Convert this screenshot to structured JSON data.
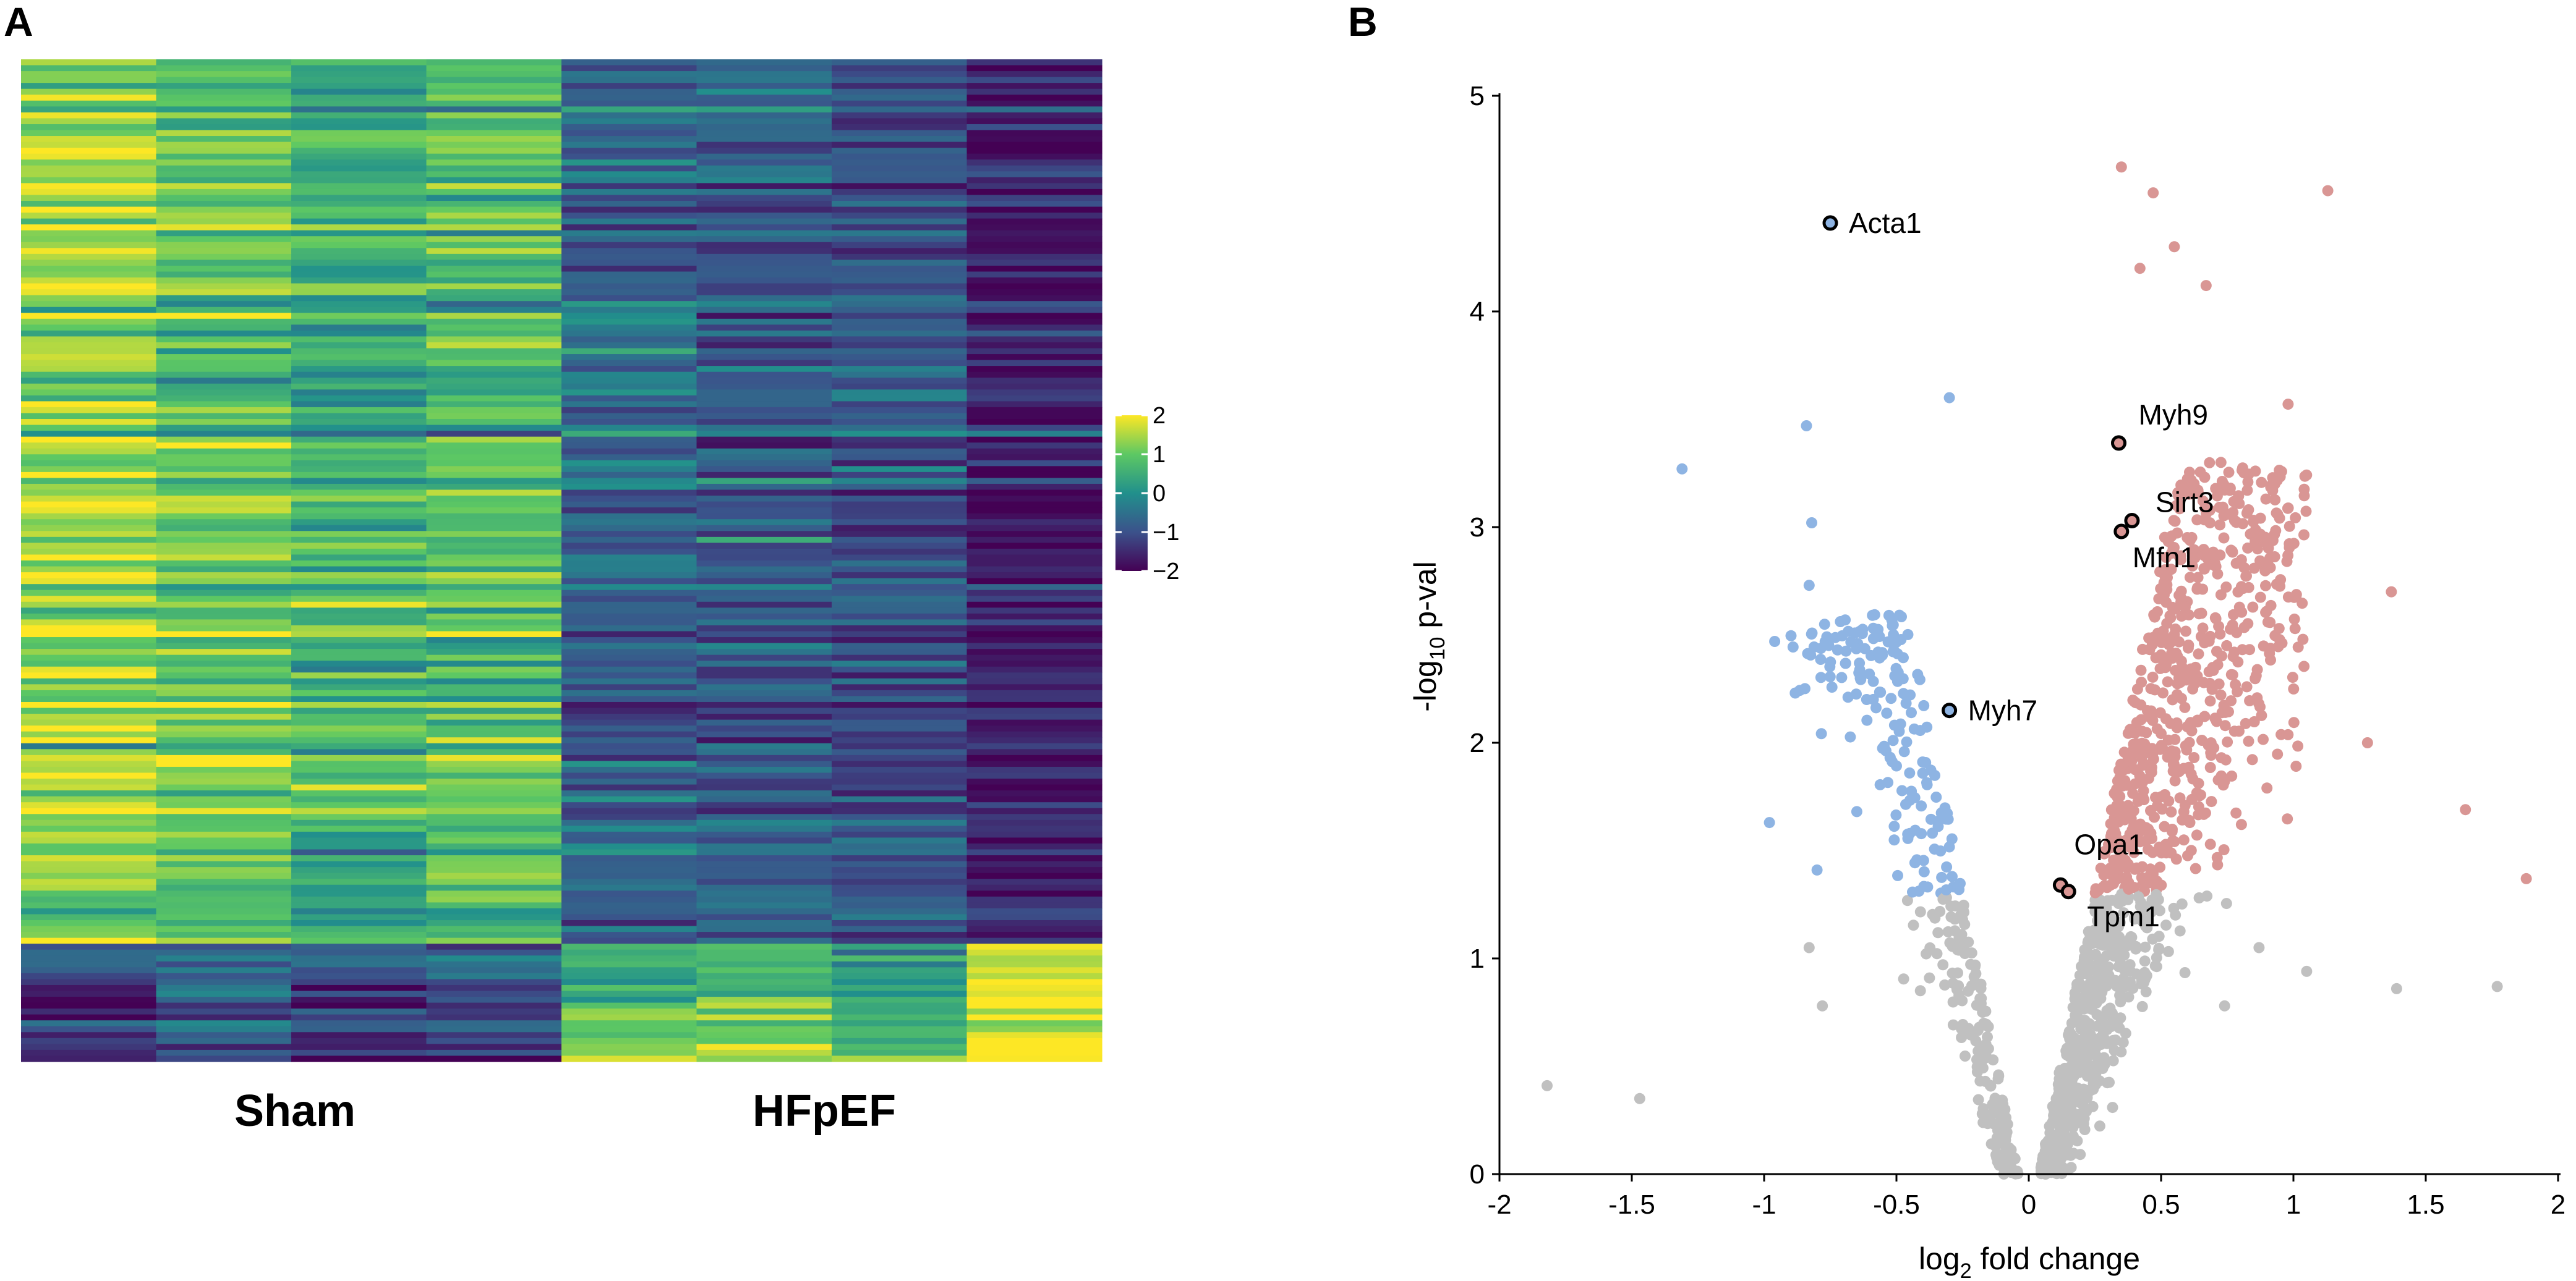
{
  "chart_data": [
    {
      "panel": "A",
      "type": "heatmap",
      "group_labels": [
        "Sham",
        "HFpEF"
      ],
      "columns": [
        {
          "group": "Sham",
          "replicate": 1
        },
        {
          "group": "Sham",
          "replicate": 2
        },
        {
          "group": "Sham",
          "replicate": 3
        },
        {
          "group": "Sham",
          "replicate": 4
        },
        {
          "group": "HFpEF",
          "replicate": 1
        },
        {
          "group": "HFpEF",
          "replicate": 2
        },
        {
          "group": "HFpEF",
          "replicate": 3
        },
        {
          "group": "HFpEF",
          "replicate": 4
        }
      ],
      "n_rows": 170,
      "top_cluster_fraction": 0.885,
      "cluster_means": {
        "down_in_HFpEF": [
          1.3,
          0.9,
          0.5,
          0.7,
          -0.7,
          -0.8,
          -0.9,
          -1.6
        ],
        "up_in_HFpEF": [
          -1.3,
          -0.9,
          -1.2,
          -1.0,
          0.8,
          0.9,
          0.5,
          1.8
        ]
      },
      "colorbar": {
        "range": [
          -2,
          2
        ],
        "ticks": [
          2,
          1,
          0,
          -1,
          -2
        ],
        "tick_labels": [
          "2",
          "1",
          "0",
          "−1",
          "−2"
        ],
        "palette": "viridis"
      }
    },
    {
      "panel": "B",
      "type": "scatter",
      "subtype": "volcano",
      "xlabel": "log2 fold change",
      "xlabel_base": "log",
      "xlabel_sub": "2",
      "xlabel_rest": " fold change",
      "ylabel": "-log10 p-val",
      "ylabel_base": "-log",
      "ylabel_sub": "10",
      "ylabel_rest": " p-val",
      "xlim": [
        -2,
        2
      ],
      "ylim": [
        0,
        5
      ],
      "xticks": [
        -2,
        -1.5,
        -1,
        -0.5,
        0,
        0.5,
        1,
        1.5,
        2
      ],
      "xtick_labels": [
        "-2",
        "-1.5",
        "-1",
        "-0.5",
        "0",
        "0.5",
        "1",
        "1.5",
        "2"
      ],
      "yticks": [
        0,
        1,
        2,
        3,
        4,
        5
      ],
      "ytick_labels": [
        "0",
        "1",
        "2",
        "3",
        "4",
        "5"
      ],
      "significance_threshold": 1.3,
      "colors": {
        "down": "#8eb4e3",
        "up": "#d99694",
        "ns": "#c0c0c0"
      },
      "highlighted": [
        {
          "label": "Acta1",
          "x": -0.75,
          "y": 4.41
        },
        {
          "label": "Myh9",
          "x": 0.34,
          "y": 3.39
        },
        {
          "label": "Sirt3",
          "x": 0.39,
          "y": 3.03
        },
        {
          "label": "Mfn1",
          "x": 0.35,
          "y": 2.98
        },
        {
          "label": "Myh7",
          "x": -0.3,
          "y": 2.15
        },
        {
          "label": "Opa1",
          "x": 0.12,
          "y": 1.34
        },
        {
          "label": "Tpm1",
          "x": 0.15,
          "y": 1.31
        }
      ],
      "notable_points": [
        {
          "x": -1.82,
          "y": 0.41
        },
        {
          "x": -1.47,
          "y": 0.35
        },
        {
          "x": -1.31,
          "y": 3.27
        },
        {
          "x": -0.96,
          "y": 2.47
        },
        {
          "x": -0.98,
          "y": 1.63
        },
        {
          "x": -0.84,
          "y": 3.47
        },
        {
          "x": -0.82,
          "y": 3.02
        },
        {
          "x": -0.83,
          "y": 2.73
        },
        {
          "x": -0.8,
          "y": 1.41
        },
        {
          "x": -0.83,
          "y": 1.05
        },
        {
          "x": -0.78,
          "y": 0.78
        },
        {
          "x": -0.3,
          "y": 3.6
        },
        {
          "x": 1.13,
          "y": 4.56
        },
        {
          "x": 0.47,
          "y": 4.55
        },
        {
          "x": 0.35,
          "y": 4.67
        },
        {
          "x": 0.55,
          "y": 4.3
        },
        {
          "x": 0.42,
          "y": 4.2
        },
        {
          "x": 0.67,
          "y": 4.12
        },
        {
          "x": 0.98,
          "y": 3.57
        },
        {
          "x": 0.93,
          "y": 3.2
        },
        {
          "x": 1.37,
          "y": 2.7
        },
        {
          "x": 1.28,
          "y": 2.0
        },
        {
          "x": 1.65,
          "y": 1.69
        },
        {
          "x": 1.88,
          "y": 1.37
        },
        {
          "x": 1.39,
          "y": 0.86
        },
        {
          "x": 1.77,
          "y": 0.87
        },
        {
          "x": 1.05,
          "y": 0.94
        },
        {
          "x": 0.74,
          "y": 0.78
        },
        {
          "x": 0.87,
          "y": 1.05
        }
      ],
      "n_generated_points": 1600,
      "generated_seed": 7
    }
  ]
}
